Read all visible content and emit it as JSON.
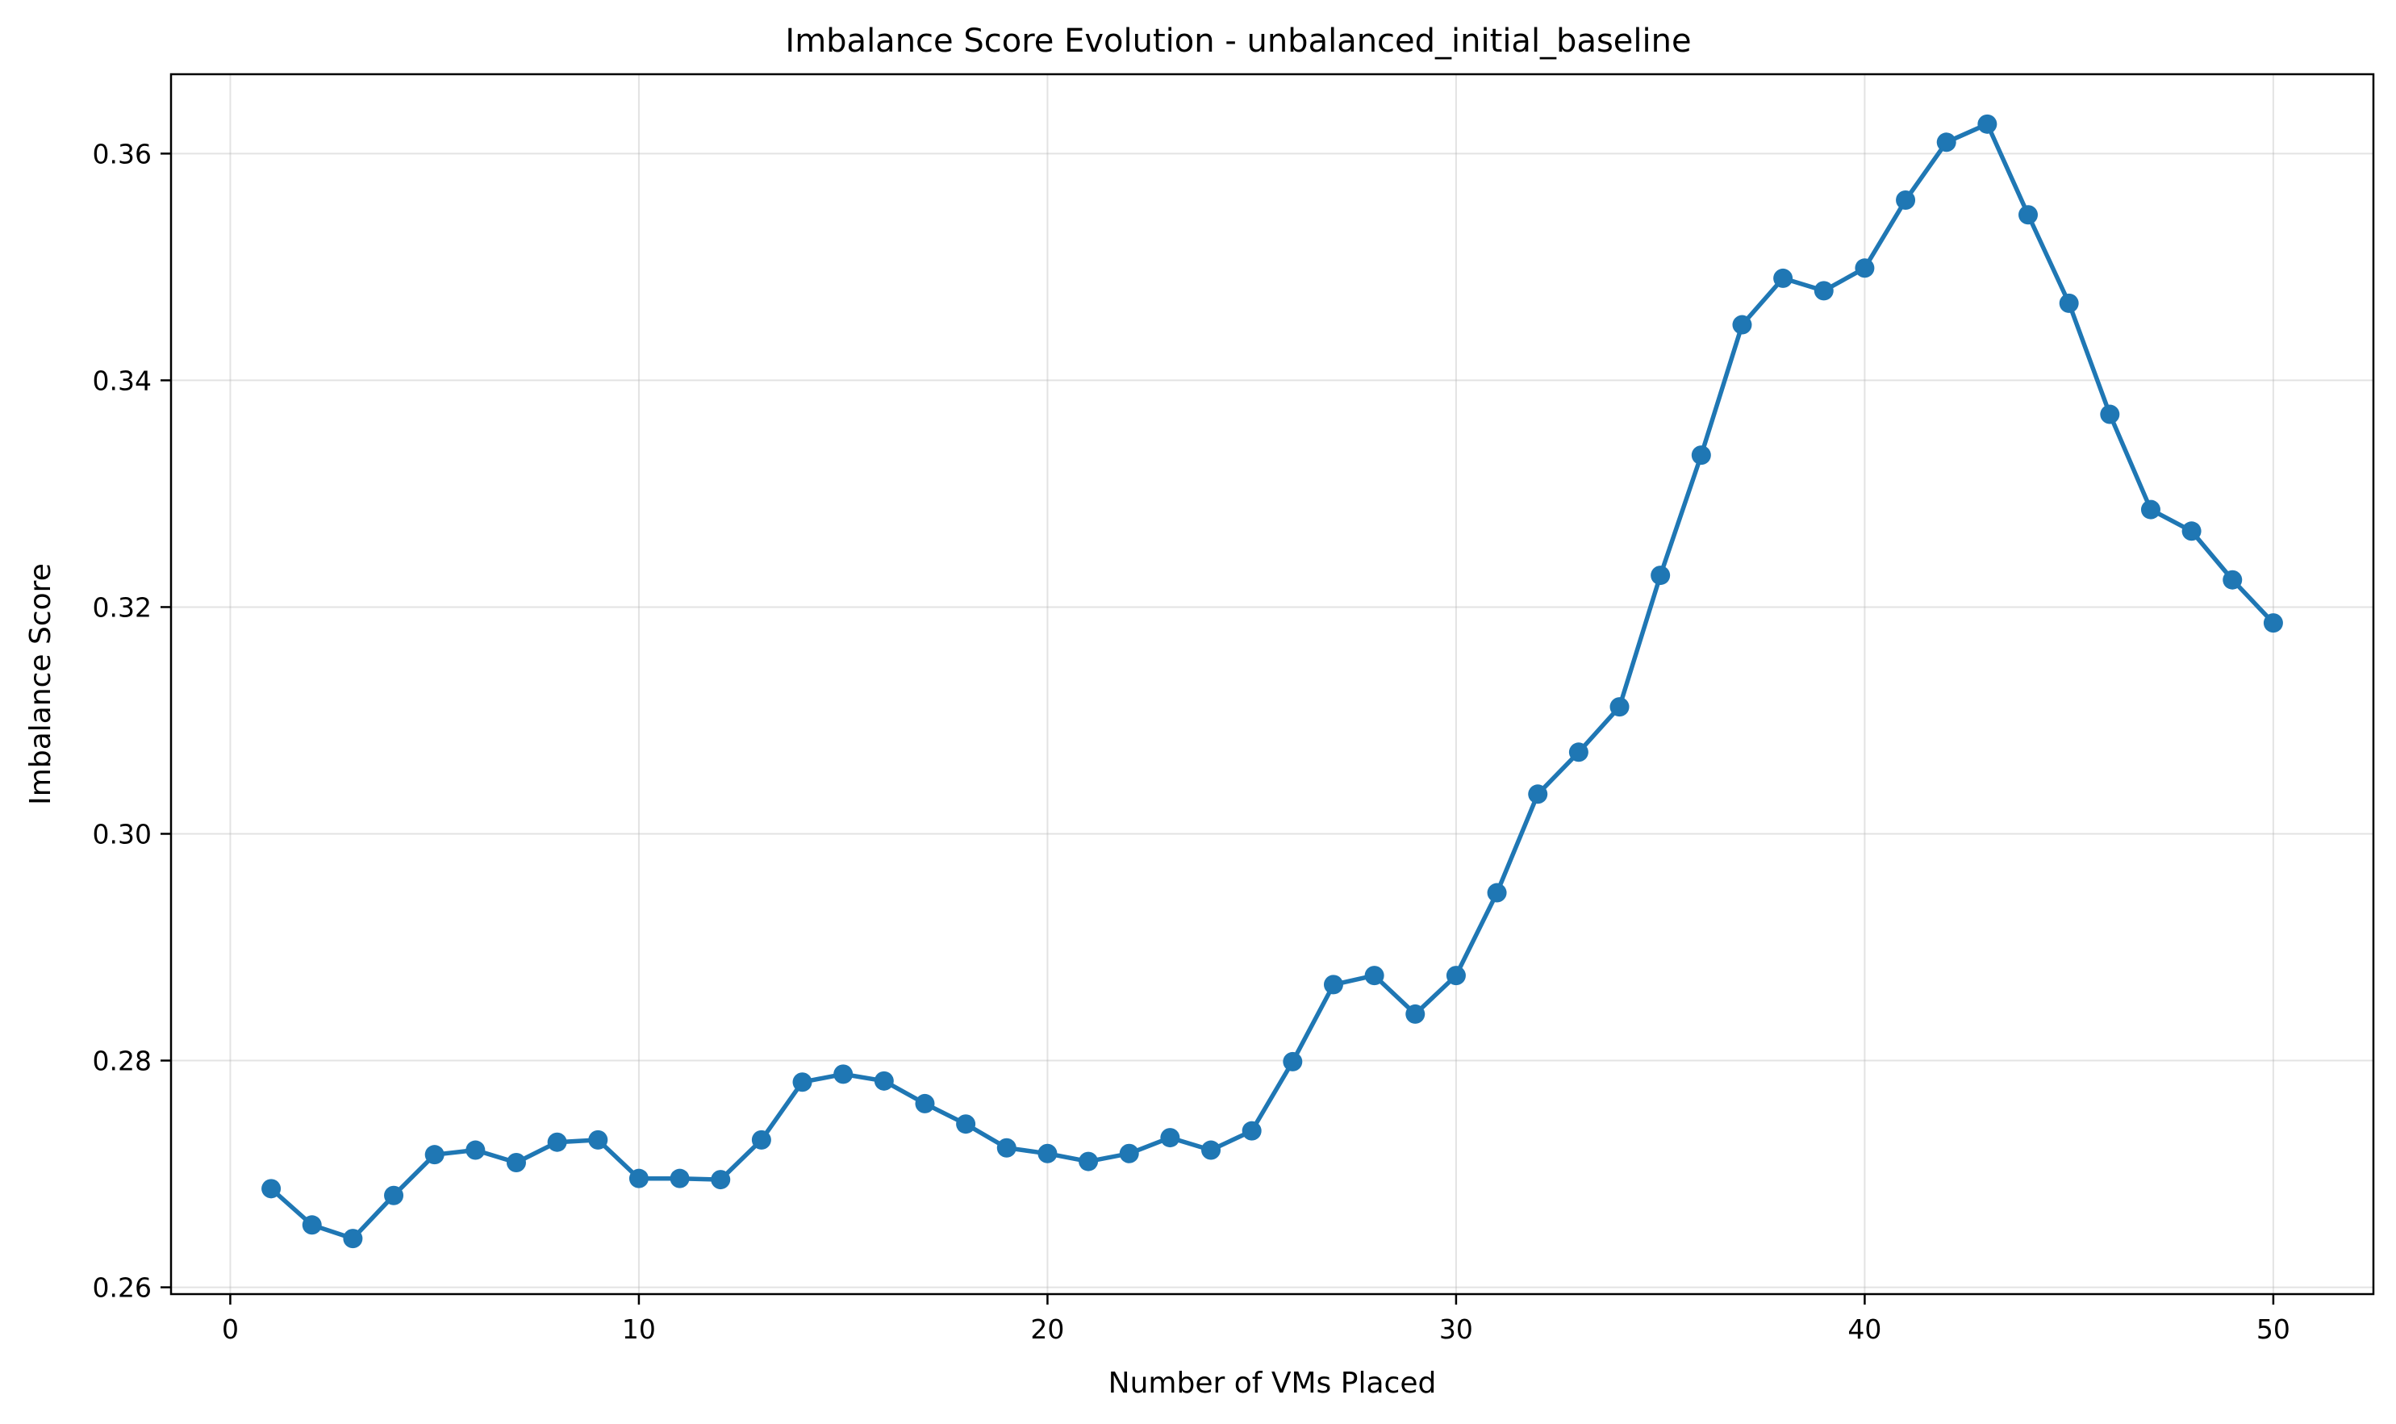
{
  "chart_data": {
    "type": "line",
    "title": "Imbalance Score Evolution - unbalanced_initial_baseline",
    "xlabel": "Number of VMs Placed",
    "ylabel": "Imbalance Score",
    "xlim": [
      -1.45,
      52.45
    ],
    "ylim": [
      0.2594,
      0.367
    ],
    "xticks": [
      0,
      10,
      20,
      30,
      40,
      50
    ],
    "xtick_labels": [
      "0",
      "10",
      "20",
      "30",
      "40",
      "50"
    ],
    "yticks": [
      0.26,
      0.28,
      0.3,
      0.32,
      0.34,
      0.36
    ],
    "ytick_labels": [
      "0.26",
      "0.28",
      "0.30",
      "0.32",
      "0.34",
      "0.36"
    ],
    "grid": true,
    "legend": false,
    "color": "#1f77b4",
    "marker": "circle",
    "x": [
      1,
      2,
      3,
      4,
      5,
      6,
      7,
      8,
      9,
      10,
      11,
      12,
      13,
      14,
      15,
      16,
      17,
      18,
      19,
      20,
      21,
      22,
      23,
      24,
      25,
      26,
      27,
      28,
      29,
      30,
      31,
      32,
      33,
      34,
      35,
      36,
      37,
      38,
      39,
      40,
      41,
      42,
      43,
      44,
      45,
      46,
      47,
      48,
      49,
      50
    ],
    "y": [
      0.2687,
      0.2655,
      0.2643,
      0.2681,
      0.2717,
      0.2721,
      0.271,
      0.2728,
      0.273,
      0.2696,
      0.2696,
      0.2695,
      0.273,
      0.2781,
      0.2788,
      0.2782,
      0.2762,
      0.2744,
      0.2723,
      0.2718,
      0.2711,
      0.2718,
      0.2732,
      0.2721,
      0.2738,
      0.2799,
      0.2867,
      0.2875,
      0.2841,
      0.2875,
      0.2948,
      0.3035,
      0.3072,
      0.3112,
      0.3228,
      0.3334,
      0.3449,
      0.349,
      0.3479,
      0.3499,
      0.3559,
      0.361,
      0.3626,
      0.3546,
      0.3468,
      0.337,
      0.3286,
      0.3267,
      0.3224,
      0.3186
    ]
  }
}
